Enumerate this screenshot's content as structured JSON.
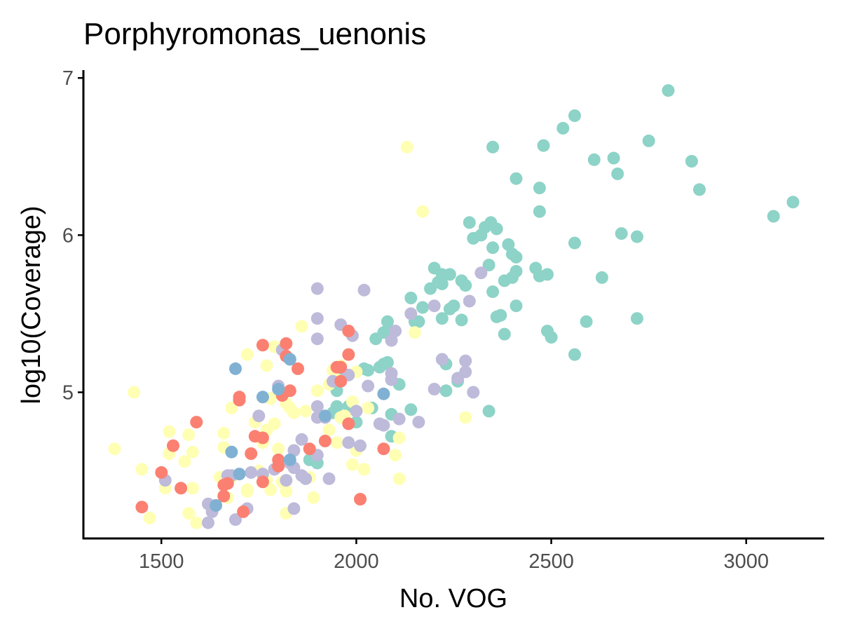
{
  "chart_data": {
    "type": "scatter",
    "title": "Porphyromonas_uenonis",
    "xlabel": "No. VOG",
    "ylabel": "log10(Coverage)",
    "xlim": [
      1300,
      3200
    ],
    "ylim": [
      4.07,
      7.05
    ],
    "xticks": [
      1500,
      2000,
      2500,
      3000
    ],
    "yticks": [
      5,
      6,
      7
    ],
    "grid": false,
    "legend": "none",
    "colors": {
      "teal": "#8DD3C7",
      "yellow": "#FFFFB3",
      "lavender": "#BEBADA",
      "salmon": "#FB8072",
      "blue": "#80B1D3",
      "axis": "#000000",
      "tick_text": "#4d4d4d"
    },
    "series": [
      {
        "color": "#8DD3C7",
        "points": [
          [
            2800,
            6.92
          ],
          [
            2560,
            6.76
          ],
          [
            2530,
            6.68
          ],
          [
            2350,
            6.56
          ],
          [
            2480,
            6.57
          ],
          [
            2750,
            6.6
          ],
          [
            2610,
            6.48
          ],
          [
            2660,
            6.49
          ],
          [
            2860,
            6.47
          ],
          [
            2410,
            6.36
          ],
          [
            2670,
            6.39
          ],
          [
            2470,
            6.3
          ],
          [
            2880,
            6.29
          ],
          [
            3120,
            6.21
          ],
          [
            3070,
            6.12
          ],
          [
            2470,
            6.15
          ],
          [
            2290,
            6.08
          ],
          [
            2330,
            6.05
          ],
          [
            2345,
            6.08
          ],
          [
            2360,
            6.04
          ],
          [
            2300,
            5.98
          ],
          [
            2320,
            6.0
          ],
          [
            2680,
            6.01
          ],
          [
            2720,
            5.99
          ],
          [
            2560,
            5.95
          ],
          [
            2390,
            5.94
          ],
          [
            2350,
            5.92
          ],
          [
            2400,
            5.88
          ],
          [
            2410,
            5.86
          ],
          [
            2340,
            5.81
          ],
          [
            2200,
            5.79
          ],
          [
            2220,
            5.75
          ],
          [
            2240,
            5.75
          ],
          [
            2460,
            5.79
          ],
          [
            2410,
            5.77
          ],
          [
            2470,
            5.74
          ],
          [
            2490,
            5.75
          ],
          [
            2380,
            5.71
          ],
          [
            2400,
            5.73
          ],
          [
            2270,
            5.71
          ],
          [
            2210,
            5.7
          ],
          [
            2190,
            5.66
          ],
          [
            2280,
            5.68
          ],
          [
            2220,
            5.69
          ],
          [
            2630,
            5.73
          ],
          [
            2350,
            5.64
          ],
          [
            2140,
            5.6
          ],
          [
            2240,
            5.53
          ],
          [
            2250,
            5.55
          ],
          [
            2170,
            5.54
          ],
          [
            2410,
            5.55
          ],
          [
            2370,
            5.49
          ],
          [
            2360,
            5.48
          ],
          [
            2220,
            5.47
          ],
          [
            2150,
            5.45
          ],
          [
            2160,
            5.45
          ],
          [
            2270,
            5.46
          ],
          [
            2080,
            5.45
          ],
          [
            2720,
            5.47
          ],
          [
            2590,
            5.45
          ],
          [
            2070,
            5.38
          ],
          [
            2090,
            5.39
          ],
          [
            2490,
            5.39
          ],
          [
            2380,
            5.37
          ],
          [
            2500,
            5.35
          ],
          [
            2050,
            5.34
          ],
          [
            2560,
            5.24
          ],
          [
            2070,
            5.18
          ],
          [
            2080,
            5.19
          ],
          [
            2060,
            5.16
          ],
          [
            2030,
            5.14
          ],
          [
            2020,
            5.15
          ],
          [
            2230,
            5.18
          ],
          [
            1960,
            5.14
          ],
          [
            2110,
            5.05
          ],
          [
            2260,
            5.07
          ],
          [
            1950,
            5.01
          ],
          [
            2230,
            5.01
          ],
          [
            1950,
            4.91
          ],
          [
            1980,
            4.91
          ],
          [
            2040,
            4.9
          ],
          [
            2140,
            4.89
          ],
          [
            2340,
            4.88
          ],
          [
            1940,
            4.87
          ],
          [
            2000,
            4.81
          ],
          [
            2090,
            4.86
          ],
          [
            2090,
            4.72
          ],
          [
            1880,
            4.57
          ],
          [
            1900,
            4.55
          ]
        ]
      },
      {
        "color": "#FFFFB3",
        "points": [
          [
            2130,
            6.56
          ],
          [
            2170,
            6.15
          ],
          [
            1860,
            5.42
          ],
          [
            2150,
            5.38
          ],
          [
            1720,
            5.24
          ],
          [
            1790,
            5.29
          ],
          [
            1770,
            5.17
          ],
          [
            1960,
            5.17
          ],
          [
            1940,
            5.14
          ],
          [
            1950,
            5.08
          ],
          [
            2000,
            5.13
          ],
          [
            1930,
            5.05
          ],
          [
            1900,
            5.01
          ],
          [
            1430,
            5.0
          ],
          [
            1780,
            4.96
          ],
          [
            1820,
            4.93
          ],
          [
            1810,
            5.0
          ],
          [
            1830,
            4.9
          ],
          [
            1990,
            4.94
          ],
          [
            1680,
            4.9
          ],
          [
            1870,
            4.88
          ],
          [
            1840,
            4.87
          ],
          [
            1970,
            4.85
          ],
          [
            1960,
            4.84
          ],
          [
            2030,
            4.9
          ],
          [
            2280,
            4.84
          ],
          [
            1740,
            4.81
          ],
          [
            1790,
            4.8
          ],
          [
            1930,
            4.76
          ],
          [
            1770,
            4.76
          ],
          [
            1520,
            4.75
          ],
          [
            1570,
            4.73
          ],
          [
            1660,
            4.74
          ],
          [
            1760,
            4.68
          ],
          [
            1950,
            4.68
          ],
          [
            1660,
            4.65
          ],
          [
            1800,
            4.64
          ],
          [
            1580,
            4.62
          ],
          [
            2000,
            4.63
          ],
          [
            2110,
            4.71
          ],
          [
            1520,
            4.61
          ],
          [
            1380,
            4.64
          ],
          [
            2100,
            4.6
          ],
          [
            1560,
            4.56
          ],
          [
            1990,
            4.54
          ],
          [
            1750,
            4.5
          ],
          [
            1650,
            4.46
          ],
          [
            2020,
            4.51
          ],
          [
            1450,
            4.51
          ],
          [
            1880,
            4.46
          ],
          [
            1680,
            4.46
          ],
          [
            1770,
            4.44
          ],
          [
            2110,
            4.45
          ],
          [
            1810,
            4.43
          ],
          [
            1510,
            4.39
          ],
          [
            1580,
            4.39
          ],
          [
            1720,
            4.37
          ],
          [
            1780,
            4.38
          ],
          [
            1720,
            4.38
          ],
          [
            1820,
            4.37
          ],
          [
            1890,
            4.33
          ],
          [
            1670,
            4.33
          ],
          [
            1820,
            4.23
          ],
          [
            1470,
            4.2
          ],
          [
            1570,
            4.23
          ],
          [
            1590,
            4.17
          ]
        ]
      },
      {
        "color": "#BEBADA",
        "points": [
          [
            1900,
            5.66
          ],
          [
            2020,
            5.65
          ],
          [
            2320,
            5.76
          ],
          [
            2290,
            5.58
          ],
          [
            2140,
            5.5
          ],
          [
            2200,
            5.55
          ],
          [
            1900,
            5.47
          ],
          [
            1960,
            5.43
          ],
          [
            2100,
            5.39
          ],
          [
            1990,
            5.36
          ],
          [
            1900,
            5.34
          ],
          [
            2090,
            5.33
          ],
          [
            1810,
            5.27
          ],
          [
            2220,
            5.21
          ],
          [
            2280,
            5.2
          ],
          [
            2090,
            5.12
          ],
          [
            1980,
            5.11
          ],
          [
            2280,
            5.13
          ],
          [
            2260,
            5.09
          ],
          [
            2090,
            5.08
          ],
          [
            1940,
            5.07
          ],
          [
            2030,
            5.04
          ],
          [
            2200,
            5.02
          ],
          [
            2300,
            5.0
          ],
          [
            1800,
            5.04
          ],
          [
            1900,
            4.91
          ],
          [
            1750,
            4.85
          ],
          [
            1920,
            4.84
          ],
          [
            1900,
            4.84
          ],
          [
            2000,
            4.88
          ],
          [
            2110,
            4.83
          ],
          [
            2060,
            4.8
          ],
          [
            2070,
            4.79
          ],
          [
            2160,
            4.81
          ],
          [
            1860,
            4.7
          ],
          [
            1980,
            4.68
          ],
          [
            2010,
            4.66
          ],
          [
            1840,
            4.63
          ],
          [
            1900,
            4.6
          ],
          [
            1830,
            4.55
          ],
          [
            1840,
            4.52
          ],
          [
            1790,
            4.51
          ],
          [
            1730,
            4.49
          ],
          [
            1670,
            4.47
          ],
          [
            1680,
            4.47
          ],
          [
            1760,
            4.48
          ],
          [
            1870,
            4.45
          ],
          [
            1930,
            4.45
          ],
          [
            1860,
            4.47
          ],
          [
            1820,
            4.44
          ],
          [
            1510,
            4.44
          ],
          [
            1720,
            4.26
          ],
          [
            1620,
            4.29
          ],
          [
            1840,
            4.26
          ],
          [
            1630,
            4.24
          ],
          [
            1690,
            4.19
          ],
          [
            1620,
            4.17
          ]
        ]
      },
      {
        "color": "#FB8072",
        "points": [
          [
            1980,
            5.39
          ],
          [
            1760,
            5.3
          ],
          [
            1820,
            5.31
          ],
          [
            1820,
            5.23
          ],
          [
            1980,
            5.24
          ],
          [
            1950,
            5.16
          ],
          [
            1960,
            5.16
          ],
          [
            1850,
            5.15
          ],
          [
            1960,
            5.07
          ],
          [
            1830,
            5.01
          ],
          [
            1810,
            4.98
          ],
          [
            1700,
            4.97
          ],
          [
            1700,
            4.95
          ],
          [
            1980,
            4.8
          ],
          [
            1590,
            4.81
          ],
          [
            1740,
            4.72
          ],
          [
            1760,
            4.71
          ],
          [
            1920,
            4.69
          ],
          [
            1530,
            4.66
          ],
          [
            2070,
            4.64
          ],
          [
            1880,
            4.64
          ],
          [
            1730,
            4.61
          ],
          [
            1800,
            4.53
          ],
          [
            1800,
            4.57
          ],
          [
            1500,
            4.49
          ],
          [
            1760,
            4.43
          ],
          [
            1670,
            4.42
          ],
          [
            1660,
            4.41
          ],
          [
            1550,
            4.39
          ],
          [
            1660,
            4.34
          ],
          [
            2010,
            4.32
          ],
          [
            1450,
            4.27
          ],
          [
            1710,
            4.24
          ]
        ]
      },
      {
        "color": "#80B1D3",
        "points": [
          [
            1690,
            5.15
          ],
          [
            1830,
            5.21
          ],
          [
            1800,
            5.02
          ],
          [
            1760,
            4.97
          ],
          [
            2070,
            4.99
          ],
          [
            1920,
            4.85
          ],
          [
            1680,
            4.62
          ],
          [
            1830,
            4.57
          ],
          [
            1700,
            4.48
          ],
          [
            1640,
            4.28
          ]
        ]
      }
    ]
  }
}
